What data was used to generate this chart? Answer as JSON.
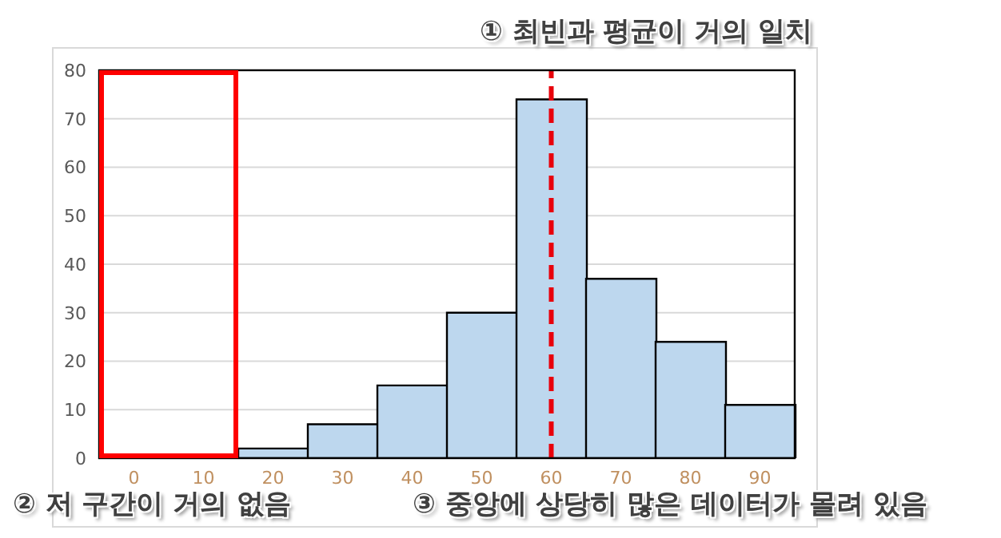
{
  "chart_data": {
    "type": "bar",
    "categories": [
      "0",
      "10",
      "20",
      "30",
      "40",
      "50",
      "60",
      "70",
      "80",
      "90"
    ],
    "values": [
      0,
      0,
      2,
      7,
      15,
      30,
      74,
      37,
      24,
      11
    ],
    "color": "#bdd7ee",
    "ylim": [
      0,
      80
    ],
    "yticks": [
      0,
      10,
      20,
      30,
      40,
      50,
      60,
      70,
      80
    ],
    "grid": "y",
    "ref_lines": [
      {
        "axis": "x",
        "value": "60",
        "color": "#e8000b",
        "line_style": "dashed"
      }
    ],
    "annotations": [
      "① 최빈과 평균이 거의 일치",
      "② 저 구간이 거의 없음",
      "③ 중앙에 상당히 많은 데이터가 몰려 있음"
    ]
  }
}
